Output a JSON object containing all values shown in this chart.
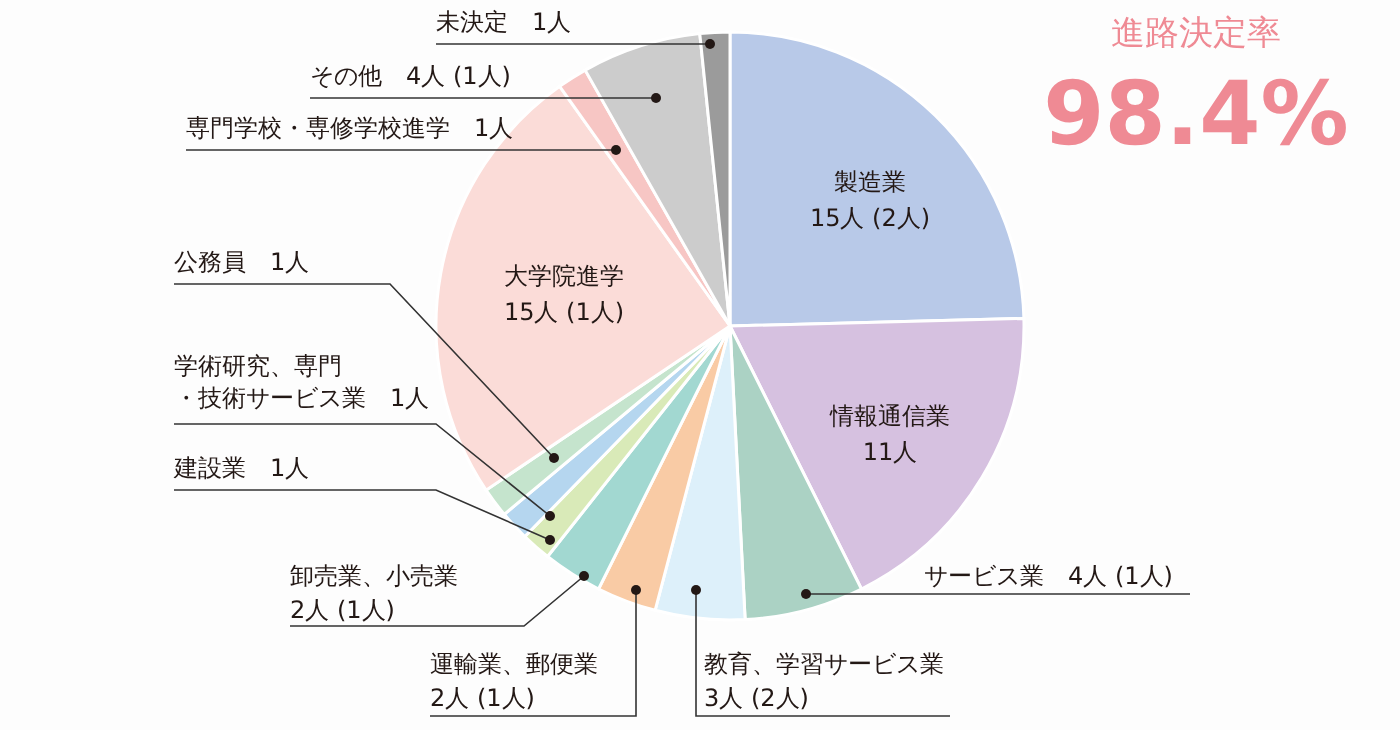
{
  "chart_data": {
    "type": "pie",
    "title": "進路決定率",
    "annotations": [
      "98.4%"
    ],
    "categories": [
      "製造業",
      "情報通信業",
      "サービス業",
      "教育、学習サービス業",
      "運輸業、郵便業",
      "卸売業、小売業",
      "建設業",
      "学術研究、専門・技術サービス業",
      "公務員",
      "大学院進学",
      "専門学校・専修学校進学",
      "その他",
      "未決定"
    ],
    "values": [
      15,
      11,
      4,
      3,
      2,
      2,
      1,
      1,
      1,
      15,
      1,
      4,
      1
    ],
    "colors": [
      "#b8c9e8",
      "#d6c1e0",
      "#abd2c4",
      "#ddf0fa",
      "#f9cba5",
      "#a2d8d1",
      "#d9eab8",
      "#b5d6ef",
      "#c5e4cd",
      "#fbdcd8",
      "#f7c6c4",
      "#cccccc",
      "#9b9b9b"
    ],
    "value_labels": [
      "15人 (2人)",
      "11人",
      "4人 (1人)",
      "3人 (2人)",
      "2人 (1人)",
      "2人 (1人)",
      "1人",
      "1人",
      "1人",
      "15人 (1人)",
      "1人",
      "4人 (1人)",
      "1人"
    ]
  }
}
